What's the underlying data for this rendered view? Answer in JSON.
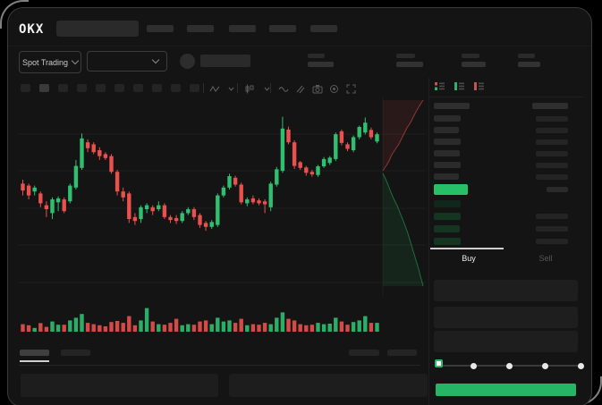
{
  "brand": {
    "logo_text": "OKX"
  },
  "topnav": {
    "nav_item_count": 5,
    "search_placeholder_skeleton": true
  },
  "toolbar": {
    "market_selector_label": "Spot Trading",
    "pair_selector_value": "",
    "stats_groups": [
      [
        19,
        29
      ],
      [
        21,
        30
      ],
      [
        20,
        27
      ],
      [
        19,
        25
      ]
    ]
  },
  "chart_toolbar": {
    "interval_count": 10,
    "active_interval_index": 1,
    "icons": [
      "zigzag-line-icon",
      "chevron-down-icon",
      "candle-type-icon",
      "chevron-down-icon",
      "indicator-wave-icon",
      "compare-icon",
      "camera-icon",
      "settings-gear-icon",
      "fullscreen-icon"
    ]
  },
  "colors": {
    "up": "#2fbf71",
    "down": "#e8514d",
    "last_price": "#27c068",
    "buy_button": "#26b564",
    "grid": "#1e1e1e",
    "depth_ask_line": "rgba(234,83,76,0.55)",
    "depth_ask_fill": "rgba(234,83,76,0.10)",
    "depth_bid_line": "rgba(39,192,104,0.50)",
    "depth_bid_fill": "rgba(39,192,104,0.10)"
  },
  "chart_data": {
    "type": "candlestick",
    "title": "",
    "xlabel": "",
    "ylabel": "",
    "grid": "horizontal",
    "value_scale": "relative 0-100 (no axis labels visible in skeleton UI)",
    "candles_ochl": [
      [
        58,
        54.5,
        60,
        52
      ],
      [
        57,
        52,
        58,
        50
      ],
      [
        54,
        56,
        57,
        52
      ],
      [
        53,
        48,
        54,
        46
      ],
      [
        47,
        45,
        49,
        41
      ],
      [
        43,
        50,
        51,
        40
      ],
      [
        48.5,
        50.5,
        51.5,
        44
      ],
      [
        50,
        44,
        51,
        43
      ],
      [
        49,
        57,
        58,
        48
      ],
      [
        56,
        67,
        70,
        55
      ],
      [
        66,
        81,
        83.5,
        65
      ],
      [
        79,
        76,
        80.5,
        74
      ],
      [
        78,
        74,
        79,
        73
      ],
      [
        75,
        72,
        76.5,
        70
      ],
      [
        73,
        71,
        74,
        70
      ],
      [
        72,
        64,
        73,
        63
      ],
      [
        64,
        54,
        65,
        52
      ],
      [
        54,
        51,
        56,
        49
      ],
      [
        53,
        40,
        54,
        38
      ],
      [
        41,
        39,
        43,
        37
      ],
      [
        40,
        46,
        47,
        38
      ],
      [
        45,
        47,
        48,
        43
      ],
      [
        46,
        44,
        47,
        42
      ],
      [
        45,
        47,
        49,
        44
      ],
      [
        47,
        41,
        48,
        40
      ],
      [
        41,
        39.5,
        42,
        38
      ],
      [
        40.5,
        39,
        42,
        37.5
      ],
      [
        39,
        43,
        44,
        38
      ],
      [
        43,
        45,
        46,
        42
      ],
      [
        45,
        41,
        46,
        39.5
      ],
      [
        42,
        37,
        43,
        35.5
      ],
      [
        38,
        36,
        39,
        34
      ],
      [
        36,
        38.5,
        39.5,
        35
      ],
      [
        37,
        52,
        53,
        36
      ],
      [
        52,
        56,
        57,
        51
      ],
      [
        56,
        61.8,
        63,
        55
      ],
      [
        61,
        57.5,
        62,
        56.5
      ],
      [
        57.5,
        48.5,
        58.5,
        47.5
      ],
      [
        48,
        50,
        51,
        46.5
      ],
      [
        50.5,
        48.5,
        52,
        47.5
      ],
      [
        49.5,
        48,
        50.5,
        47
      ],
      [
        49,
        47.5,
        50,
        43
      ],
      [
        46,
        58,
        59,
        44
      ],
      [
        57.5,
        65.3,
        66.5,
        56.5
      ],
      [
        64.5,
        86,
        92,
        63.5
      ],
      [
        85.5,
        79,
        87,
        78
      ],
      [
        79,
        67,
        80,
        65.5
      ],
      [
        68.9,
        66,
        69.5,
        65
      ],
      [
        66.2,
        63.5,
        67,
        62
      ],
      [
        64,
        62.7,
        65,
        61.5
      ],
      [
        62.4,
        66.8,
        67.5,
        61.5
      ],
      [
        66.8,
        70.5,
        71.5,
        66
      ],
      [
        68.5,
        71.2,
        72,
        67.5
      ],
      [
        70.5,
        83.1,
        84,
        69.5
      ],
      [
        84.6,
        78.7,
        85.5,
        77.5
      ],
      [
        78,
        75.7,
        79,
        74.5
      ],
      [
        75,
        81.6,
        82.5,
        74
      ],
      [
        81.6,
        86.8,
        87.5,
        80.5
      ],
      [
        84,
        89,
        91.6,
        83
      ],
      [
        85.3,
        81.6,
        86.5,
        80.5
      ],
      [
        79.4,
        83.1,
        84,
        78.5
      ]
    ],
    "volumes": [
      28,
      24,
      14,
      32,
      18,
      38,
      26,
      26,
      42,
      52,
      66,
      33,
      28,
      24,
      20,
      36,
      40,
      33,
      58,
      24,
      42,
      88,
      38,
      28,
      26,
      33,
      48,
      24,
      28,
      26,
      38,
      42,
      28,
      52,
      38,
      42,
      33,
      48,
      24,
      28,
      26,
      33,
      28,
      52,
      72,
      48,
      42,
      28,
      24,
      26,
      33,
      28,
      30,
      52,
      38,
      26,
      36,
      42,
      58,
      33,
      33
    ],
    "depth": {
      "orientation": "vertical",
      "asks_line": [
        [
          407,
          82
        ],
        [
          411,
          76
        ],
        [
          414,
          71
        ],
        [
          417,
          64
        ],
        [
          421,
          58
        ],
        [
          425,
          52
        ],
        [
          428,
          46
        ],
        [
          431,
          40
        ],
        [
          434,
          34
        ],
        [
          438,
          28
        ],
        [
          441,
          22
        ],
        [
          444,
          16
        ],
        [
          447,
          11
        ],
        [
          450,
          6
        ],
        [
          452,
          3
        ]
      ],
      "bids_line": [
        [
          407,
          85
        ],
        [
          410,
          91
        ],
        [
          413,
          98
        ],
        [
          416,
          106
        ],
        [
          419,
          113
        ],
        [
          423,
          121
        ],
        [
          427,
          131
        ],
        [
          431,
          141
        ],
        [
          435,
          152
        ],
        [
          438,
          162
        ],
        [
          441,
          172
        ],
        [
          444,
          182
        ],
        [
          447,
          192
        ],
        [
          449,
          200
        ],
        [
          451,
          207
        ],
        [
          452,
          211
        ]
      ]
    }
  },
  "order_book": {
    "view_icons": [
      "book-combined-icon",
      "book-bids-icon",
      "book-asks-icon"
    ],
    "header_skeleton": true,
    "ask_rows": [
      [
        30,
        36
      ],
      [
        28,
        36
      ],
      [
        30,
        36
      ],
      [
        29,
        36
      ],
      [
        30,
        36
      ],
      [
        28,
        36
      ]
    ],
    "last_price_highlighted": true,
    "bid_rows": [
      [
        30,
        0
      ],
      [
        30,
        36
      ],
      [
        29,
        36
      ],
      [
        30,
        36
      ]
    ]
  },
  "trade_panel": {
    "tabs": {
      "buy_label": "Buy",
      "sell_label": "Sell",
      "active": "Buy"
    },
    "input_field_count": 3,
    "slider": {
      "stops": [
        0,
        25,
        50,
        75,
        100
      ],
      "value": 0
    },
    "submit_button_label": ""
  },
  "bottom_panel": {
    "tab_count": 2,
    "active_tab_index": 0,
    "right_link_count": 2,
    "field_count": 2
  }
}
